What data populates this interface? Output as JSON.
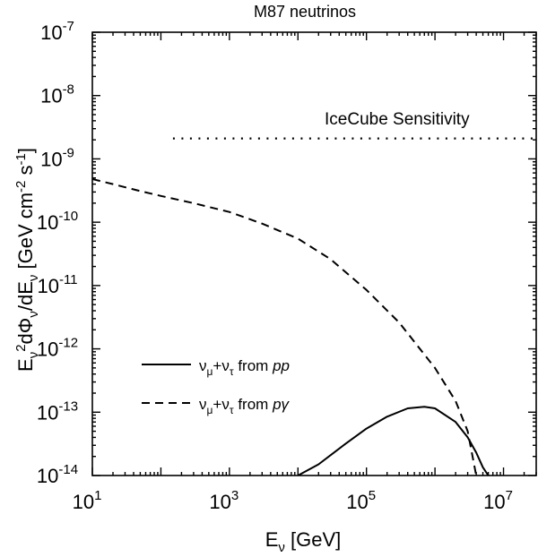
{
  "chart_data": {
    "type": "line",
    "title": "M87 neutrinos",
    "xlabel": {
      "base": "E",
      "sub": "ν",
      "unit": " [GeV]"
    },
    "ylabel": {
      "text": "E",
      "sup1": "2",
      "text2": "dΦ",
      "text3": "/dE",
      "unit_open": " [GeV cm",
      "sup2": "-2",
      "unit_s": " s",
      "sup3": "-1",
      "unit_close": "]",
      "sub_nu": "ν"
    },
    "x_scale": "log",
    "y_scale": "log",
    "xlim": [
      10,
      30000000
    ],
    "ylim": [
      1e-14,
      1e-07
    ],
    "x_ticks": [
      {
        "exp": "1",
        "value": 10
      },
      {
        "exp": "3",
        "value": 1000
      },
      {
        "exp": "5",
        "value": 100000
      },
      {
        "exp": "7",
        "value": 10000000
      }
    ],
    "y_ticks": [
      {
        "exp": "-14",
        "value": 1e-14
      },
      {
        "exp": "-13",
        "value": 1e-13
      },
      {
        "exp": "-12",
        "value": 1e-12
      },
      {
        "exp": "-11",
        "value": 1e-11
      },
      {
        "exp": "-10",
        "value": 1e-10
      },
      {
        "exp": "-9",
        "value": 1e-09
      },
      {
        "exp": "-8",
        "value": 1e-08
      },
      {
        "exp": "-7",
        "value": 1e-07
      }
    ],
    "tick_base": "10",
    "annotation": {
      "text": "IceCube Sensitivity"
    },
    "series": [
      {
        "name": "ν_μ+ν_τ from pp",
        "style": "solid",
        "x": [
          10000,
          20000,
          50000,
          100000,
          200000,
          400000,
          700000,
          1000000,
          2000000,
          3000000,
          4000000,
          5000000,
          6000000
        ],
        "y": [
          1e-14,
          1.5e-14,
          3.2e-14,
          5.5e-14,
          8.5e-14,
          1.15e-13,
          1.22e-13,
          1.15e-13,
          7e-14,
          4e-14,
          2.3e-14,
          1.35e-14,
          1e-14
        ]
      },
      {
        "name": "ν_μ+ν_τ from pγ",
        "style": "dashed",
        "x": [
          10,
          20,
          50,
          100,
          300,
          1000,
          3000,
          10000,
          30000,
          100000,
          300000,
          1000000,
          2000000,
          3000000,
          4000000
        ],
        "y": [
          4.8e-10,
          4e-10,
          3.1e-10,
          2.6e-10,
          2e-10,
          1.45e-10,
          9.5e-11,
          5.5e-11,
          2.6e-11,
          8.5e-12,
          2.6e-12,
          5e-13,
          1.5e-13,
          5e-14,
          1e-14
        ]
      },
      {
        "name": "IceCube Sensitivity",
        "style": "dotted",
        "x": [
          150,
          30000000
        ],
        "y": [
          2.1e-09,
          2.1e-09
        ]
      }
    ],
    "legend": [
      {
        "nu": "ν",
        "sub1": "μ",
        "plus": "+",
        "sub2": "τ",
        "from": " from ",
        "proc": "pp",
        "style": "solid"
      },
      {
        "nu": "ν",
        "sub1": "μ",
        "plus": "+",
        "sub2": "τ",
        "from": " from ",
        "proc": "pγ",
        "style": "dashed"
      }
    ],
    "legend_position": "lower-left",
    "grid": false
  }
}
